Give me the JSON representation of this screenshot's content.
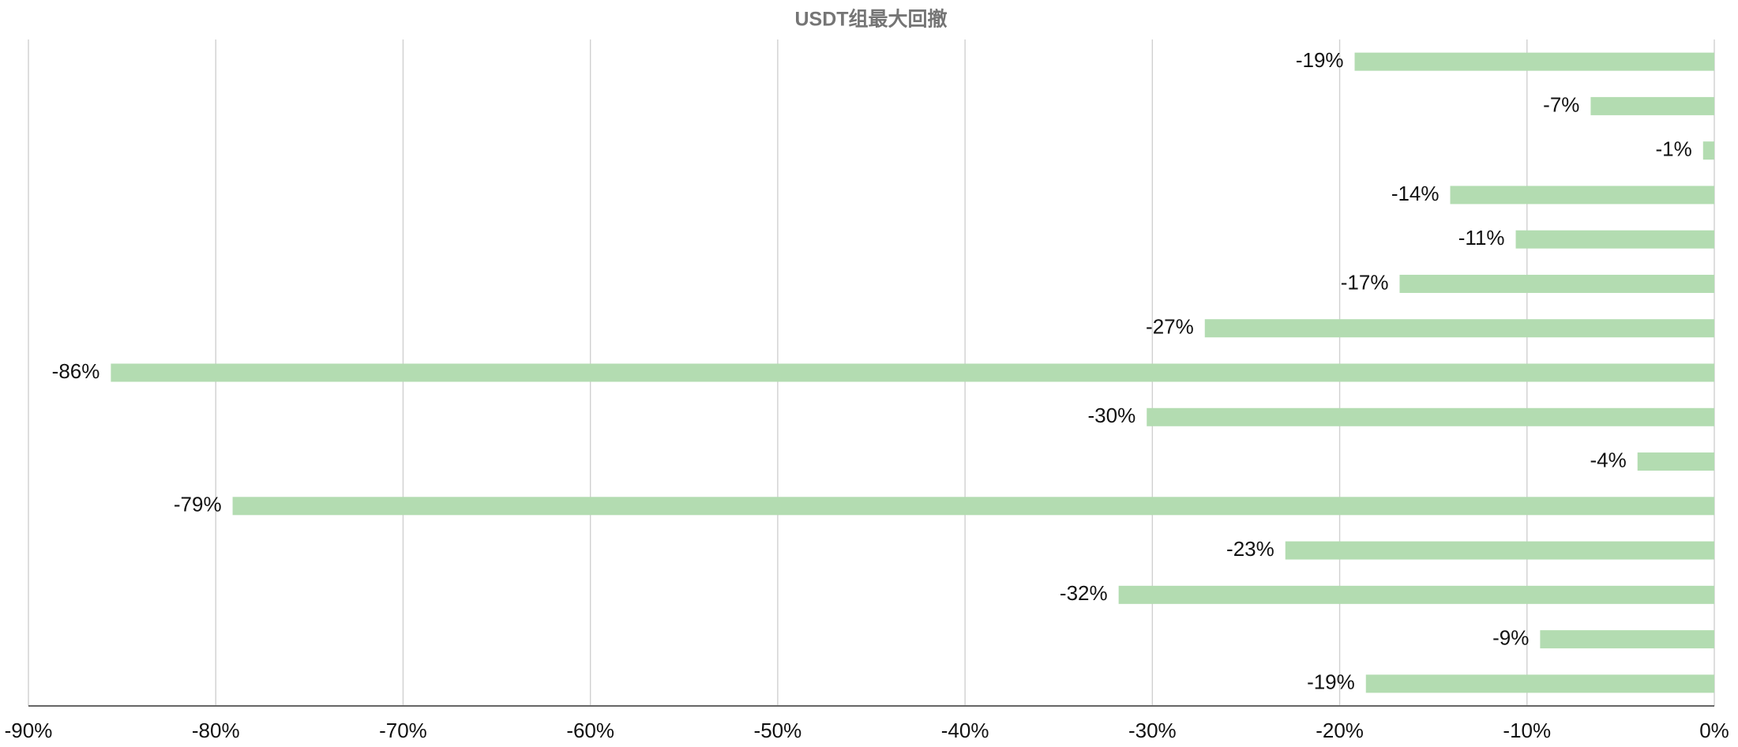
{
  "chart_data": {
    "type": "hbar",
    "title": "USDT组最大回撤",
    "categories": [
      null,
      null,
      null,
      null,
      null,
      null,
      null,
      null,
      null,
      null,
      null,
      null,
      null,
      null,
      null
    ],
    "values": [
      -19.2,
      -6.6,
      -0.6,
      -14.1,
      -10.6,
      -16.8,
      -27.2,
      -85.6,
      -30.3,
      -4.1,
      -79.1,
      -22.9,
      -31.8,
      -9.3,
      -18.6
    ],
    "value_labels": [
      "-19%",
      "-7%",
      "-1%",
      "-14%",
      "-11%",
      "-17%",
      "-27%",
      "-86%",
      "-30%",
      "-4%",
      "-79%",
      "-23%",
      "-32%",
      "-9%",
      "-19%"
    ],
    "color": "#b3dcb1",
    "xlim": [
      -90,
      0
    ],
    "xticks": [
      {
        "value": -90,
        "label": "-90%"
      },
      {
        "value": -80,
        "label": "-80%"
      },
      {
        "value": -70,
        "label": "-70%"
      },
      {
        "value": -60,
        "label": "-60%"
      },
      {
        "value": -50,
        "label": "-50%"
      },
      {
        "value": -40,
        "label": "-40%"
      },
      {
        "value": -30,
        "label": "-30%"
      },
      {
        "value": -20,
        "label": "-20%"
      },
      {
        "value": -10,
        "label": "-10%"
      },
      {
        "value": 0,
        "label": "0%"
      }
    ],
    "grid": true
  }
}
